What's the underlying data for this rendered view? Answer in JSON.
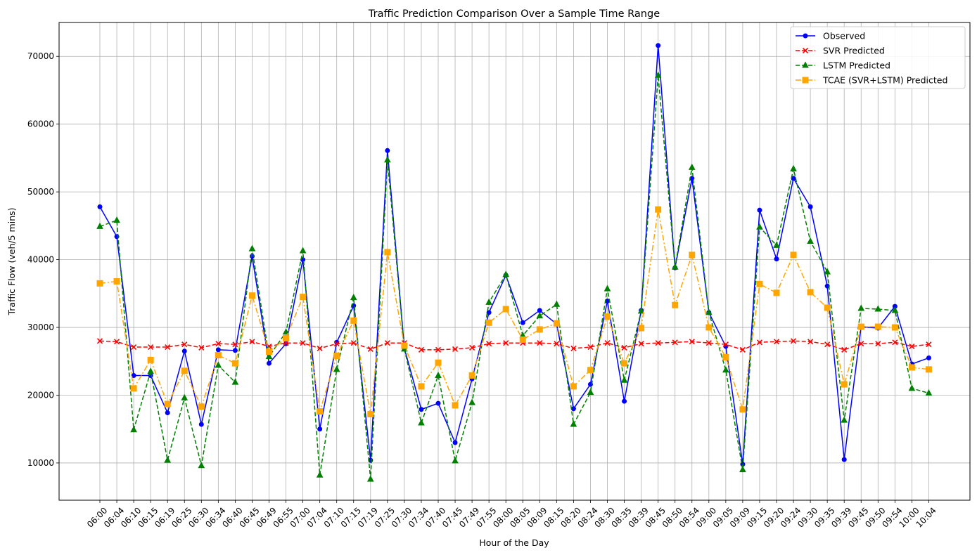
{
  "chart_data": {
    "type": "line",
    "title": "Traffic Prediction Comparison Over a Sample Time Range",
    "xlabel": "Hour of the Day",
    "ylabel": "Traffic Flow (veh/5 mins)",
    "ylim": [
      4500,
      75000
    ],
    "yticks": [
      10000,
      20000,
      30000,
      40000,
      50000,
      60000,
      70000
    ],
    "grid": true,
    "legend_position": "top-right",
    "categories": [
      "06:00",
      "06:04",
      "06:10",
      "06:15",
      "06:19",
      "06:25",
      "06:30",
      "06:34",
      "06:40",
      "06:45",
      "06:49",
      "06:55",
      "07:00",
      "07:04",
      "07:10",
      "07:15",
      "07:19",
      "07:25",
      "07:30",
      "07:34",
      "07:40",
      "07:45",
      "07:49",
      "07:55",
      "08:00",
      "08:05",
      "08:09",
      "08:15",
      "08:20",
      "08:24",
      "08:30",
      "08:35",
      "08:39",
      "08:45",
      "08:50",
      "08:54",
      "09:00",
      "09:05",
      "09:09",
      "09:15",
      "09:20",
      "09:24",
      "09:30",
      "09:35",
      "09:39",
      "09:45",
      "09:50",
      "09:54",
      "10:00",
      "10:04"
    ],
    "series": [
      {
        "name": "Observed",
        "color": "#0000ff",
        "dash": "solid",
        "marker": "circle",
        "values": [
          47800,
          43400,
          22900,
          22900,
          17400,
          26500,
          15700,
          26700,
          26600,
          40500,
          24700,
          27600,
          40000,
          15000,
          27800,
          33200,
          10400,
          56100,
          26900,
          17900,
          18800,
          13000,
          22400,
          32200,
          37700,
          30700,
          32500,
          30500,
          18000,
          21600,
          33900,
          19100,
          32500,
          71600,
          38800,
          52000,
          32200,
          27200,
          9800,
          47300,
          40100,
          52000,
          47800,
          36100,
          10500,
          30100,
          29900,
          33100,
          24600,
          25500
        ]
      },
      {
        "name": "SVR Predicted",
        "color": "#ff0000",
        "dash": "dashed",
        "marker": "x",
        "values": [
          28000,
          27900,
          27100,
          27100,
          27100,
          27500,
          27000,
          27600,
          27500,
          27900,
          27200,
          27700,
          27700,
          26900,
          27600,
          27700,
          26800,
          27700,
          27700,
          26700,
          26700,
          26800,
          27000,
          27600,
          27700,
          27700,
          27700,
          27600,
          26900,
          27100,
          27700,
          27000,
          27600,
          27700,
          27800,
          27900,
          27700,
          27500,
          26700,
          27800,
          27900,
          28000,
          27900,
          27500,
          26700,
          27600,
          27600,
          27800,
          27200,
          27500
        ]
      },
      {
        "name": "LSTM Predicted",
        "color": "#008000",
        "dash": "dashed",
        "marker": "triangle",
        "values": [
          44900,
          45800,
          14900,
          23500,
          10400,
          19600,
          9600,
          24400,
          21900,
          41600,
          25700,
          29300,
          41300,
          8200,
          23800,
          34400,
          7600,
          54700,
          26800,
          15900,
          22900,
          10300,
          18900,
          33700,
          37800,
          28800,
          31700,
          33400,
          15700,
          20400,
          35700,
          22200,
          32400,
          67200,
          38900,
          53600,
          32200,
          23700,
          9000,
          44800,
          42100,
          53400,
          42700,
          38200,
          16300,
          32800,
          32700,
          32500,
          21000,
          20300
        ]
      },
      {
        "name": "TCAE (SVR+LSTM) Predicted",
        "color": "#ffa500",
        "dash": "dashdot",
        "marker": "square",
        "values": [
          36500,
          36800,
          21000,
          25200,
          18700,
          23600,
          18300,
          25900,
          24700,
          34700,
          26400,
          28400,
          34500,
          17600,
          25800,
          31000,
          17200,
          41100,
          27300,
          21300,
          24800,
          18500,
          22900,
          30700,
          32700,
          28200,
          29700,
          30600,
          21300,
          23700,
          31600,
          24700,
          29900,
          47400,
          33300,
          40700,
          30000,
          25600,
          17900,
          36400,
          35100,
          40700,
          35200,
          32900,
          21600,
          30100,
          30100,
          30000,
          24100,
          23800
        ]
      }
    ]
  }
}
